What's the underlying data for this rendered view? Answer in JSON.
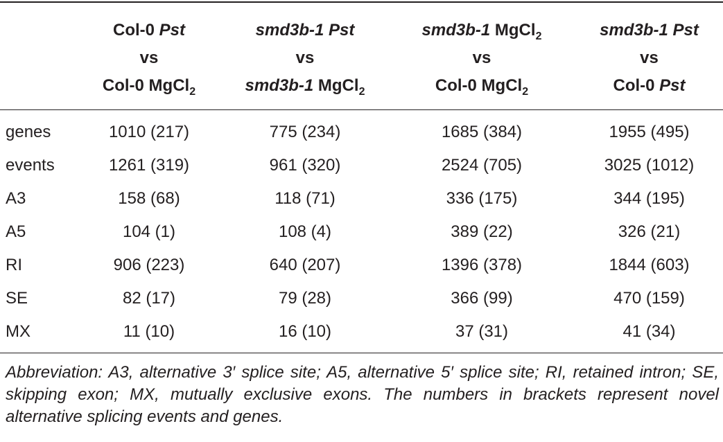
{
  "table": {
    "header": [
      {
        "lines": [
          [
            "Col-0",
            "Pst"
          ],
          [
            "vs"
          ],
          [
            "Col-0",
            "MgCl",
            "2"
          ]
        ]
      },
      {
        "lines": [
          [
            "smd3b-1",
            "Pst"
          ],
          [
            "vs"
          ],
          [
            "smd3b-1",
            "MgCl",
            "2"
          ]
        ]
      },
      {
        "lines": [
          [
            "smd3b-1",
            "MgCl",
            "2"
          ],
          [
            "vs"
          ],
          [
            "Col-0",
            "MgCl",
            "2"
          ]
        ]
      },
      {
        "lines": [
          [
            "smd3b-1",
            "Pst"
          ],
          [
            "vs"
          ],
          [
            "Col-0",
            "Pst"
          ]
        ]
      }
    ],
    "rows": [
      [
        "genes",
        "1010 (217)",
        "775 (234)",
        "1685 (384)",
        "1955 (495)"
      ],
      [
        "events",
        "1261 (319)",
        "961 (320)",
        "2524 (705)",
        "3025 (1012)"
      ],
      [
        "A3",
        "158 (68)",
        "118 (71)",
        "336 (175)",
        "344 (195)"
      ],
      [
        "A5",
        "104 (1)",
        "108 (4)",
        "389 (22)",
        "326 (21)"
      ],
      [
        "RI",
        "906 (223)",
        "640 (207)",
        "1396 (378)",
        "1844 (603)"
      ],
      [
        "SE",
        "82 (17)",
        "79 (28)",
        "366 (99)",
        "470 (159)"
      ],
      [
        "MX",
        "11 (10)",
        "16 (10)",
        "37 (31)",
        "41 (34)"
      ]
    ]
  },
  "footnote": "Abbreviation: A3, alternative 3′ splice site; A5, alternative 5′ splice site; RI, retained intron; SE, skipping exon; MX, mutually exclusive exons. The numbers in brackets represent novel alternative splicing events and genes."
}
